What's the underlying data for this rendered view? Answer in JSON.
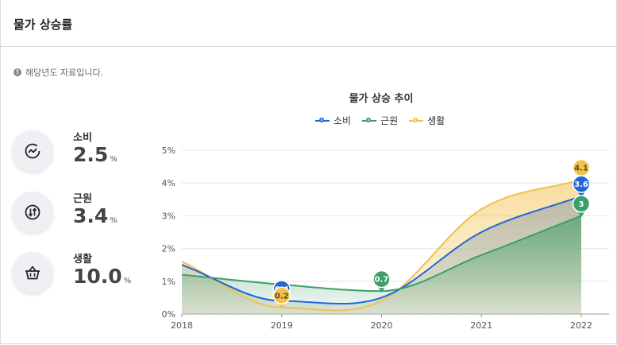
{
  "header": {
    "title": "물가 상승률"
  },
  "notice": {
    "icon": "info-icon",
    "text": "해당년도 자료입니다."
  },
  "stats": [
    {
      "label": "소비",
      "value": "2.5",
      "unit": "%",
      "icon": "trend-cycle-icon"
    },
    {
      "label": "근원",
      "value": "3.4",
      "unit": "%",
      "icon": "exchange-arrows-icon"
    },
    {
      "label": "생활",
      "value": "10.0",
      "unit": "%",
      "icon": "shopping-basket-icon"
    }
  ],
  "colors": {
    "consumer": "#2266d6",
    "core": "#3d9e6a",
    "living": "#f2c14e",
    "grid": "#e6e6e6"
  },
  "chart_data": {
    "type": "area",
    "title": "물가 상승 추이",
    "xlabel": "",
    "ylabel": "",
    "x": [
      2018,
      2019,
      2020,
      2021,
      2022
    ],
    "xticks": [
      "2018",
      "2019",
      "2020",
      "2021",
      "2022"
    ],
    "ylim": [
      0,
      5
    ],
    "yticks": [
      "0%",
      "1%",
      "2%",
      "3%",
      "4%",
      "5%"
    ],
    "series": [
      {
        "name": "소비",
        "values": [
          1.5,
          0.4,
          0.5,
          2.5,
          3.6
        ]
      },
      {
        "name": "근원",
        "values": [
          1.2,
          0.9,
          0.7,
          1.8,
          3.0
        ]
      },
      {
        "name": "생활",
        "values": [
          1.6,
          0.2,
          0.4,
          3.2,
          4.1
        ]
      }
    ],
    "markers": [
      {
        "series": "소비",
        "x": 2019,
        "label": "0.4"
      },
      {
        "series": "생활",
        "x": 2019,
        "label": "0.2"
      },
      {
        "series": "근원",
        "x": 2020,
        "label": "0.7"
      },
      {
        "series": "생활",
        "x": 2022,
        "label": "4.1"
      },
      {
        "series": "소비",
        "x": 2022,
        "label": "3.6"
      },
      {
        "series": "근원",
        "x": 2022,
        "label": "3"
      }
    ]
  }
}
